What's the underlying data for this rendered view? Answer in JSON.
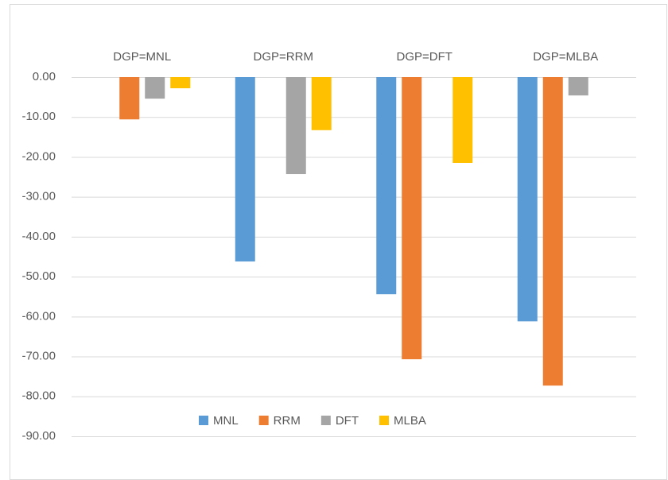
{
  "chart_data": {
    "type": "bar",
    "categories": [
      "DGP=MNL",
      "DGP=RRM",
      "DGP=DFT",
      "DGP=MLBA"
    ],
    "series": [
      {
        "name": "MNL",
        "color": "#5b9bd5",
        "values": [
          0,
          -46.2,
          -54.4,
          -61.2
        ]
      },
      {
        "name": "RRM",
        "color": "#ed7d31",
        "values": [
          -10.6,
          0,
          -70.7,
          -77.3
        ]
      },
      {
        "name": "DFT",
        "color": "#a5a5a5",
        "values": [
          -5.4,
          -24.3,
          0,
          -4.6
        ]
      },
      {
        "name": "MLBA",
        "color": "#ffc000",
        "values": [
          -2.8,
          -13.3,
          -21.5,
          0
        ]
      }
    ],
    "ylim": [
      -90,
      0
    ],
    "yticks": [
      {
        "value": 0,
        "label": "0.00"
      },
      {
        "value": -10,
        "label": "-10.00"
      },
      {
        "value": -20,
        "label": "-20.00"
      },
      {
        "value": -30,
        "label": "-30.00"
      },
      {
        "value": -40,
        "label": "-40.00"
      },
      {
        "value": -50,
        "label": "-50.00"
      },
      {
        "value": -60,
        "label": "-60.00"
      },
      {
        "value": -70,
        "label": "-70.00"
      },
      {
        "value": -80,
        "label": "-80.00"
      },
      {
        "value": -90,
        "label": "-90.00"
      }
    ],
    "grid": true,
    "legend": "bottom"
  }
}
